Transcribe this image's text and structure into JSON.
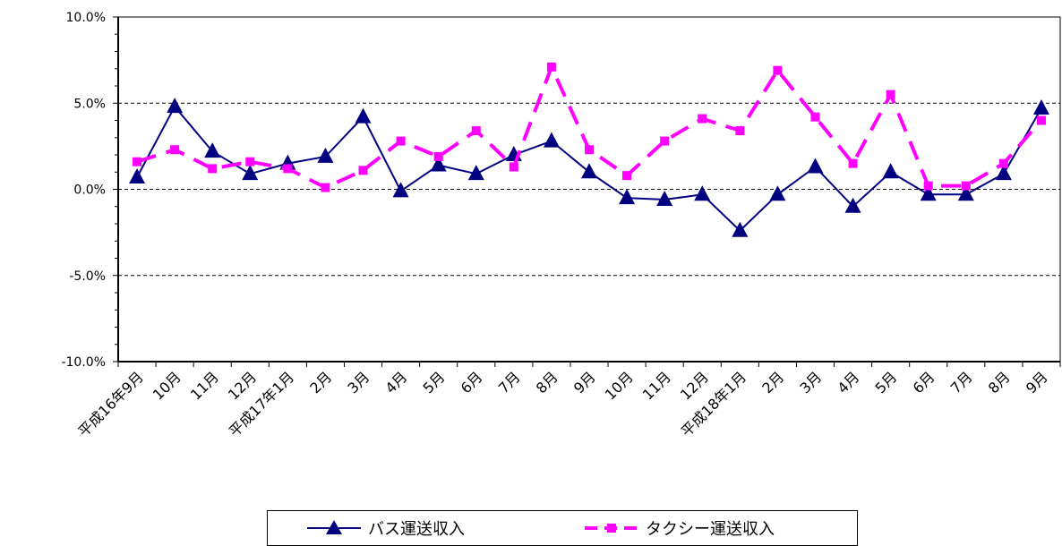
{
  "chart_data": {
    "type": "line",
    "categories": [
      "平成16年9月",
      "10月",
      "11月",
      "12月",
      "平成17年1月",
      "2月",
      "3月",
      "4月",
      "5月",
      "6月",
      "7月",
      "8月",
      "9月",
      "10月",
      "11月",
      "12月",
      "平成18年1月",
      "2月",
      "3月",
      "4月",
      "5月",
      "6月",
      "7月",
      "8月",
      "9月"
    ],
    "series": [
      {
        "name": "バス運送収入",
        "color": "#000080",
        "marker": "triangle",
        "dash": "solid",
        "values": [
          0.7,
          4.8,
          2.2,
          0.9,
          1.5,
          1.9,
          4.2,
          -0.1,
          1.4,
          0.9,
          2.0,
          2.8,
          1.0,
          -0.5,
          -0.6,
          -0.3,
          -2.4,
          -0.3,
          1.3,
          -1.0,
          1.0,
          -0.3,
          -0.3,
          0.9,
          4.7
        ]
      },
      {
        "name": "タクシー運送収入",
        "color": "#ff00ff",
        "marker": "square",
        "dash": "dashed",
        "values": [
          1.6,
          2.3,
          1.2,
          1.6,
          1.2,
          0.1,
          1.1,
          2.8,
          1.9,
          3.4,
          1.3,
          7.1,
          2.3,
          0.8,
          2.8,
          4.1,
          3.4,
          6.9,
          4.2,
          1.5,
          5.5,
          0.2,
          0.2,
          1.5,
          4.0
        ]
      }
    ],
    "yticks": [
      "10.0%",
      "5.0%",
      "0.0%",
      "-5.0%",
      "-10.0%"
    ],
    "ytick_values": [
      10,
      5,
      0,
      -5,
      -10
    ],
    "ylim": [
      -10,
      10
    ],
    "grid": "dashed horizontal at ±5 and 0",
    "legend_position": "bottom-center"
  }
}
